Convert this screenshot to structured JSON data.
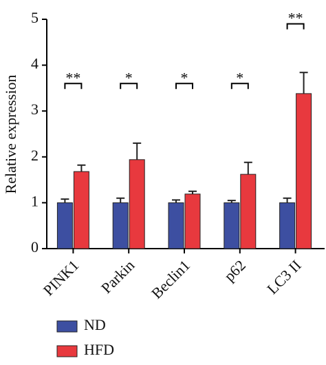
{
  "chart_data": {
    "type": "bar",
    "y_label": "Relative expression",
    "categories": [
      "PINK1",
      "Parkin",
      "Beclin1",
      "p62",
      "LC3 II"
    ],
    "series": [
      {
        "name": "ND",
        "color": "#3d4fa1",
        "values": [
          1.0,
          1.0,
          1.0,
          1.0,
          1.0
        ],
        "errors": [
          0.08,
          0.1,
          0.06,
          0.05,
          0.1
        ]
      },
      {
        "name": "HFD",
        "color": "#e8393e",
        "values": [
          1.68,
          1.94,
          1.19,
          1.62,
          3.38
        ],
        "errors": [
          0.14,
          0.36,
          0.06,
          0.26,
          0.46
        ]
      }
    ],
    "significance": [
      "**",
      "*",
      "*",
      "*",
      "**"
    ],
    "ylim": [
      0,
      5
    ],
    "yticks": [
      0,
      1,
      2,
      3,
      4,
      5
    ]
  }
}
